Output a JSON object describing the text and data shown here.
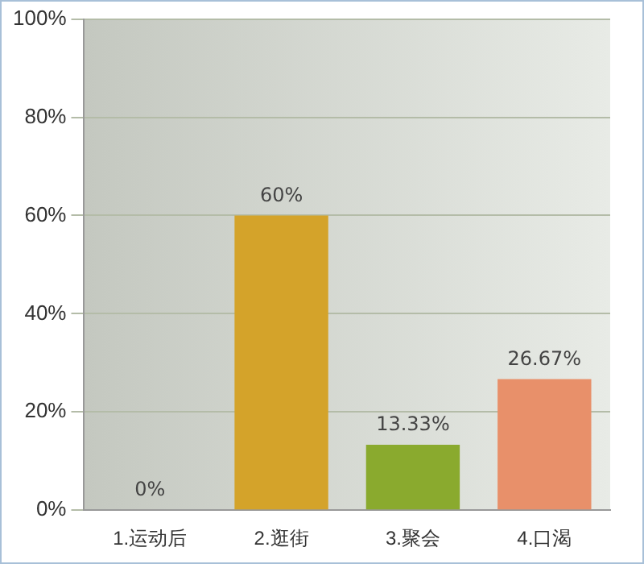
{
  "chart_data": {
    "type": "bar",
    "categories": [
      "1.运动后",
      "2.逛街",
      "3.聚会",
      "4.口渴"
    ],
    "values": [
      0,
      60,
      13.33,
      26.67
    ],
    "colors": [
      "#a9c8e6",
      "#d4a32a",
      "#8aaa2e",
      "#e8906a"
    ],
    "value_labels": [
      "0%",
      "60%",
      "13.33%",
      "26.67%"
    ],
    "ylim": [
      0,
      100
    ],
    "yticks": [
      {
        "value": 0,
        "label": "0%"
      },
      {
        "value": 20,
        "label": "20%"
      },
      {
        "value": 40,
        "label": "40%"
      },
      {
        "value": 60,
        "label": "60%"
      },
      {
        "value": 80,
        "label": "80%"
      },
      {
        "value": 100,
        "label": "100%"
      }
    ],
    "grid": "y"
  }
}
